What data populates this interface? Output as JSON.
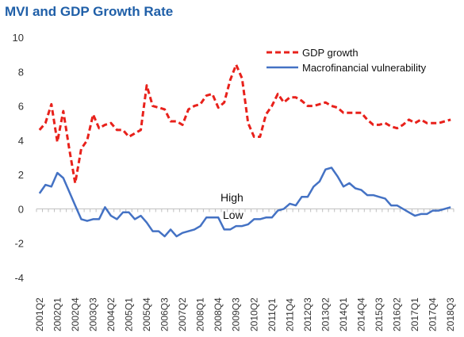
{
  "chart_data": {
    "type": "line",
    "title": "MVI and GDP Growth Rate",
    "ylim": [
      -4,
      10
    ],
    "yticks": [
      -4,
      -2,
      0,
      2,
      4,
      6,
      8,
      10
    ],
    "grid": false,
    "legend_position": "top-right",
    "x_tick_labels": [
      "2001Q2",
      "2002Q1",
      "2002Q4",
      "2003Q3",
      "2004Q2",
      "2005Q1",
      "2005Q4",
      "2006Q3",
      "2007Q2",
      "2008Q1",
      "2008Q4",
      "2009Q3",
      "2010Q2",
      "2011Q1",
      "2011Q4",
      "2012Q3",
      "2013Q2",
      "2014Q1",
      "2014Q4",
      "2015Q3",
      "2016Q2",
      "2017Q1",
      "2017Q4",
      "2018Q3"
    ],
    "annotations": [
      "High",
      "Low"
    ],
    "series": [
      {
        "name": "GDP growth",
        "color": "#e8211b",
        "style": "dashed",
        "values": [
          4.6,
          5.0,
          6.1,
          3.9,
          5.7,
          3.5,
          1.5,
          3.5,
          4.0,
          5.5,
          4.7,
          4.9,
          5.0,
          4.6,
          4.6,
          4.2,
          4.4,
          4.6,
          7.2,
          6.0,
          5.9,
          5.8,
          5.1,
          5.1,
          4.9,
          5.8,
          6.0,
          6.1,
          6.6,
          6.7,
          5.9,
          6.2,
          7.5,
          8.4,
          7.6,
          5.0,
          4.2,
          4.2,
          5.5,
          6.0,
          6.7,
          6.2,
          6.5,
          6.5,
          6.3,
          6.0,
          6.0,
          6.1,
          6.2,
          6.0,
          5.9,
          5.6,
          5.6,
          5.6,
          5.6,
          5.2,
          4.9,
          4.9,
          5.0,
          4.8,
          4.7,
          4.9,
          5.2,
          5.0,
          5.2,
          5.0,
          5.0,
          5.0,
          5.1,
          5.2
        ]
      },
      {
        "name": "Macrofinancial vulnerability",
        "color": "#4472c4",
        "style": "solid",
        "values": [
          0.9,
          1.4,
          1.3,
          2.1,
          1.8,
          1.0,
          0.2,
          -0.6,
          -0.7,
          -0.6,
          -0.6,
          0.1,
          -0.4,
          -0.6,
          -0.2,
          -0.2,
          -0.6,
          -0.4,
          -0.8,
          -1.3,
          -1.3,
          -1.6,
          -1.2,
          -1.6,
          -1.4,
          -1.3,
          -1.2,
          -1.0,
          -0.5,
          -0.5,
          -0.5,
          -1.2,
          -1.2,
          -1.0,
          -1.0,
          -0.9,
          -0.6,
          -0.6,
          -0.5,
          -0.5,
          -0.1,
          0.0,
          0.3,
          0.2,
          0.7,
          0.7,
          1.3,
          1.6,
          2.3,
          2.4,
          1.9,
          1.3,
          1.5,
          1.2,
          1.1,
          0.8,
          0.8,
          0.7,
          0.6,
          0.2,
          0.2,
          0.0,
          -0.2,
          -0.4,
          -0.3,
          -0.3,
          -0.1,
          -0.1,
          0.0,
          0.1
        ]
      }
    ]
  }
}
